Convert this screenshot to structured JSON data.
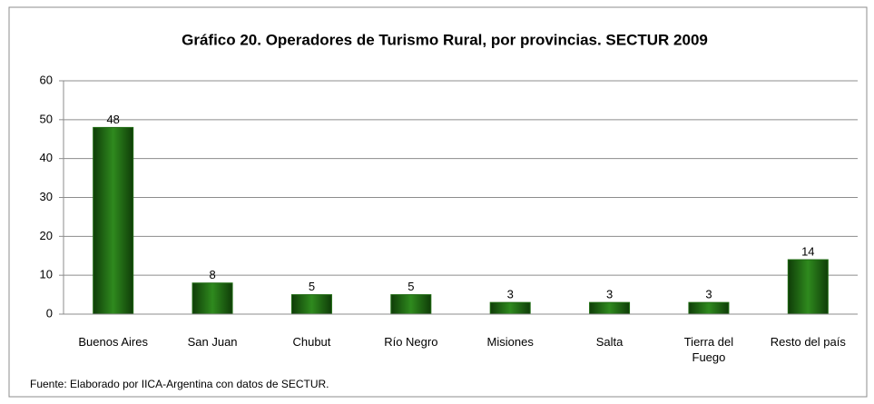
{
  "chart_data": {
    "type": "bar",
    "title": "Gráfico 20. Operadores de Turismo Rural, por provincias. SECTUR 2009",
    "categories": [
      "Buenos Aires",
      "San Juan",
      "Chubut",
      "Río Negro",
      "Misiones",
      "Salta",
      "Tierra del Fuego",
      "Resto del país"
    ],
    "values": [
      48,
      8,
      5,
      5,
      3,
      3,
      3,
      14
    ],
    "color": "#1f6b12",
    "ylim": [
      0,
      60
    ],
    "yticks": [
      0,
      10,
      20,
      30,
      40,
      50,
      60
    ],
    "grid": true,
    "source": "Fuente: Elaborado por IICA-Argentina con datos de SECTUR."
  }
}
